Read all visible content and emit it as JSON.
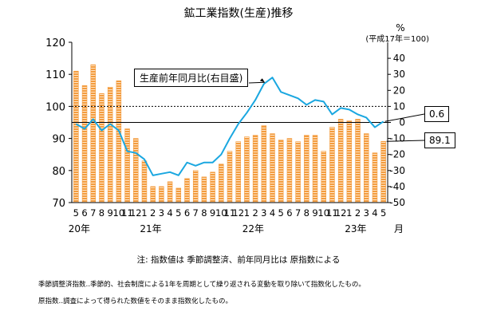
{
  "title": "鉱工業指数(生産)推移",
  "base_note": "(平成17年＝100)",
  "notes": {
    "line1": "注: 指数値は 季節調整済、前年同月比は 原指数による",
    "line2": "季節調整済指数‥季節的、社会制度による1年を周期として繰り返される変動を取り除いて指数化したもの。",
    "line3": "原指数‥調査によって得られた数値をそのまま指数化したもの。"
  },
  "colors": {
    "bar_fill": "#f39c3f",
    "bar_stripe": "#ffe6c8",
    "line": "#1aa7e0",
    "axis": "#000000"
  },
  "chart_data": {
    "type": "bar+line",
    "categories": [
      "5",
      "6",
      "7",
      "8",
      "9",
      "10",
      "11",
      "12",
      "1",
      "2",
      "3",
      "4",
      "5",
      "6",
      "7",
      "8",
      "9",
      "10",
      "11",
      "12",
      "1",
      "2",
      "3",
      "4",
      "5",
      "6",
      "7",
      "8",
      "9",
      "10",
      "11",
      "12",
      "1",
      "2",
      "3",
      "4",
      "5"
    ],
    "year_labels": [
      {
        "label": "20年",
        "index": 0
      },
      {
        "label": "21年",
        "index": 8
      },
      {
        "label": "22年",
        "index": 20
      },
      {
        "label": "23年",
        "index": 32
      }
    ],
    "x_unit": "月",
    "series": [
      {
        "axis": "left",
        "values": [
          111,
          106.5,
          113,
          104,
          106,
          108,
          93,
          90,
          83,
          75,
          75,
          76.5,
          74.5,
          77.5,
          80,
          78,
          79.5,
          82,
          86,
          89,
          90.5,
          91,
          94,
          91.5,
          89.5,
          90,
          89,
          91,
          91,
          86,
          93.5,
          96,
          95.5,
          96,
          91.5,
          85.5,
          89.1
        ]
      },
      {
        "name": "生産前年同月比(右目盛)",
        "axis": "right",
        "values": [
          -1,
          -4,
          2,
          -5,
          -1,
          -5,
          -18,
          -19,
          -23,
          -33,
          -32,
          -31,
          -33,
          -25,
          -27,
          -25,
          -25,
          -20,
          -10,
          -1,
          6,
          14,
          24,
          28,
          19,
          17,
          15,
          11,
          14,
          13,
          5,
          9,
          8,
          5,
          3,
          -3,
          0.6
        ]
      }
    ],
    "y_left": {
      "ticks": [
        "120",
        "110",
        "100",
        "90",
        "80",
        "70"
      ],
      "lim": [
        70,
        120
      ]
    },
    "y_right": {
      "unit": "%",
      "ticks": [
        "40",
        "30",
        "20",
        "10",
        "0",
        "-10",
        "-20",
        "-30",
        "-40",
        "-50"
      ],
      "lim": [
        -50,
        50
      ]
    },
    "reference_lines": [
      {
        "axis": "left",
        "value": 100,
        "style": "dashed"
      },
      {
        "axis": "right",
        "value": 0,
        "style": "solid"
      }
    ],
    "callouts": {
      "series_label": "生産前年同月比(右目盛)",
      "last_line_value": "0.6",
      "last_bar_value": "89.1"
    }
  }
}
